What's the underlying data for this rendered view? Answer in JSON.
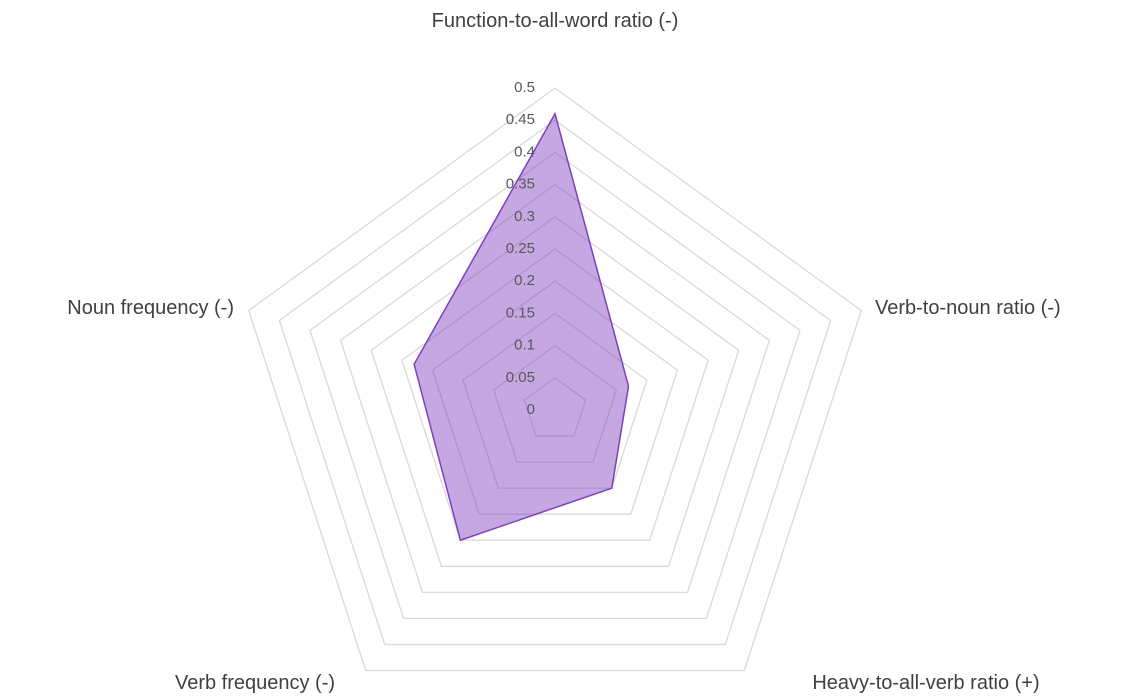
{
  "chart_data": {
    "type": "radar",
    "categories": [
      "Function-to-all-word ratio (-)",
      "Verb-to-noun ratio (-)",
      "Heavy-to-all-verb ratio (+)",
      "Verb frequency (-)",
      "Noun frequency (-)"
    ],
    "values": [
      0.46,
      0.12,
      0.15,
      0.25,
      0.23
    ],
    "color": "#7f3fbf",
    "ylim": [
      0,
      0.5
    ],
    "yticks": [
      0,
      0.05,
      0.1,
      0.15,
      0.2,
      0.25,
      0.3,
      0.35,
      0.4,
      0.45,
      0.5
    ],
    "grid": true
  }
}
